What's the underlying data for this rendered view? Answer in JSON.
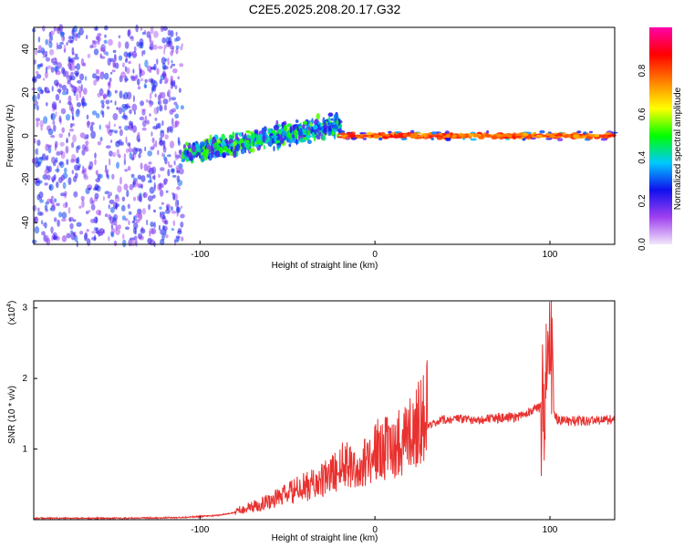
{
  "title": "C2E5.2025.208.20.17.G32",
  "chart_data": [
    {
      "type": "heatmap",
      "xlabel": "Height of straight line (km)",
      "ylabel": "Frequency (Hz)",
      "xlim": [
        -195,
        137
      ],
      "ylim": [
        -50,
        50
      ],
      "xticks": [
        -100,
        0,
        100
      ],
      "xtick_labels": [
        "-100",
        "0",
        "100"
      ],
      "yticks": [
        -40,
        -20,
        0,
        20,
        40
      ],
      "ytick_labels": [
        "-40",
        "-20",
        "0",
        "20",
        "40"
      ],
      "colorbar": {
        "label": "Normalized spectral amplitude",
        "range": [
          0,
          1
        ],
        "ticks": [
          0.0,
          0.2,
          0.4,
          0.6,
          0.8
        ],
        "tick_labels": [
          "0.0",
          "0.2",
          "0.4",
          "0.6",
          "0.8"
        ],
        "colors": [
          "#f2e6fa",
          "#a040f0",
          "#1010ee",
          "#00c8ff",
          "#00ff00",
          "#ffff00",
          "#ff8000",
          "#ff0000",
          "#ff00aa"
        ]
      },
      "regions": [
        {
          "x_range": [
            -195,
            -110
          ],
          "freq_center": 0,
          "freq_spread": 50,
          "amplitude": 0.25,
          "description": "scattered"
        },
        {
          "x_range": [
            -110,
            -20
          ],
          "freq_center": [
            -8,
            5
          ],
          "freq_spread": 6,
          "amplitude": 0.45
        },
        {
          "x_range": [
            -20,
            137
          ],
          "freq_center": 0,
          "freq_spread": 2,
          "amplitude": 0.85
        }
      ],
      "grid": false
    },
    {
      "type": "line",
      "xlabel": "Height of straight line (km)",
      "ylabel": "SNR (10 * v/v)",
      "y_scale_label": "(x10",
      "y_scale_exp": "4",
      "xlim": [
        -195,
        137
      ],
      "ylim": [
        0,
        3.1
      ],
      "xticks": [
        -100,
        0,
        100
      ],
      "xtick_labels": [
        "-100",
        "0",
        "100"
      ],
      "yticks": [
        1,
        2,
        3
      ],
      "ytick_labels": [
        "1",
        "2",
        "3"
      ],
      "color": "#e8312f",
      "x": [
        -195,
        -150,
        -110,
        -90,
        -80,
        -70,
        -60,
        -50,
        -40,
        -30,
        -20,
        -15,
        -10,
        0,
        10,
        20,
        30,
        40,
        60,
        80,
        95,
        98,
        100,
        102,
        105,
        120,
        137
      ],
      "y": [
        0.02,
        0.02,
        0.03,
        0.06,
        0.1,
        0.15,
        0.22,
        0.3,
        0.38,
        0.45,
        0.6,
        0.7,
        0.55,
        0.8,
        0.85,
        1.0,
        1.3,
        1.42,
        1.42,
        1.45,
        1.6,
        2.0,
        3.0,
        1.5,
        1.4,
        1.4,
        1.42
      ],
      "grid": false
    }
  ]
}
